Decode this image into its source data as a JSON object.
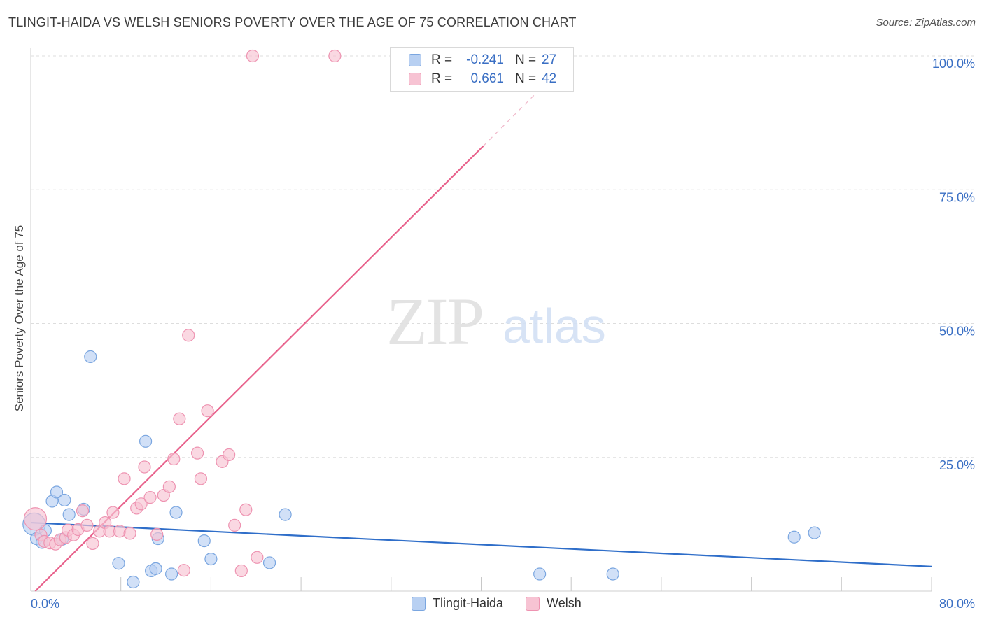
{
  "title": "TLINGIT-HAIDA VS WELSH SENIORS POVERTY OVER THE AGE OF 75 CORRELATION CHART",
  "source": "Source: ZipAtlas.com",
  "watermark": {
    "zip": "ZIP",
    "atlas": "atlas"
  },
  "legend": {
    "rows": [
      {
        "r_label": "R =",
        "r_value": "-0.241",
        "n_label": "N =",
        "n_value": "27"
      },
      {
        "r_label": "R =",
        "r_value": "0.661",
        "n_label": "N =",
        "n_value": "42"
      }
    ]
  },
  "bottom_legend": {
    "series1": "Tlingit-Haida",
    "series2": "Welsh"
  },
  "colors": {
    "blue_fill": "#b8d0f2",
    "blue_stroke": "#7aa6e0",
    "blue_line": "#2f6ec9",
    "pink_fill": "#f7c3d3",
    "pink_stroke": "#ee93b1",
    "pink_line": "#e8628c",
    "tick_label": "#3a6fc4",
    "grid": "#dddddd"
  },
  "chart_data": {
    "type": "scatter",
    "title": "TLINGIT-HAIDA VS WELSH SENIORS POVERTY OVER THE AGE OF 75 CORRELATION CHART",
    "xlabel": "",
    "ylabel": "Seniors Poverty Over the Age of 75",
    "xlim": [
      0,
      80
    ],
    "ylim": [
      0,
      100
    ],
    "x_tick_labels": [
      "0.0%",
      "80.0%"
    ],
    "y_ticks": [
      25,
      50,
      75,
      100
    ],
    "y_tick_labels": [
      "25.0%",
      "50.0%",
      "75.0%",
      "100.0%"
    ],
    "series": [
      {
        "name": "Tlingit-Haida",
        "r": -0.241,
        "n": 27,
        "points": [
          [
            0.3,
            12.5
          ],
          [
            0.5,
            9.8
          ],
          [
            1.0,
            9.1
          ],
          [
            1.3,
            11.3
          ],
          [
            1.9,
            16.8
          ],
          [
            2.3,
            18.5
          ],
          [
            2.8,
            9.7
          ],
          [
            3.0,
            17.0
          ],
          [
            3.4,
            14.3
          ],
          [
            4.7,
            15.3
          ],
          [
            5.3,
            43.8
          ],
          [
            7.8,
            5.2
          ],
          [
            9.1,
            1.7
          ],
          [
            10.2,
            28.0
          ],
          [
            10.7,
            3.8
          ],
          [
            11.1,
            4.2
          ],
          [
            11.3,
            9.8
          ],
          [
            12.5,
            3.2
          ],
          [
            12.9,
            14.7
          ],
          [
            15.4,
            9.4
          ],
          [
            16.0,
            6.0
          ],
          [
            21.2,
            5.3
          ],
          [
            22.6,
            14.3
          ],
          [
            45.2,
            3.2
          ],
          [
            51.7,
            3.2
          ],
          [
            67.8,
            10.1
          ],
          [
            69.6,
            10.9
          ]
        ],
        "trend": {
          "x0": 0,
          "y0": 12.8,
          "x1": 80,
          "y1": 4.6
        }
      },
      {
        "name": "Welsh",
        "r": 0.661,
        "n": 42,
        "points": [
          [
            0.4,
            13.5
          ],
          [
            0.9,
            10.5
          ],
          [
            1.2,
            9.3
          ],
          [
            1.7,
            9.0
          ],
          [
            2.2,
            8.8
          ],
          [
            2.6,
            9.6
          ],
          [
            3.1,
            10.0
          ],
          [
            3.3,
            11.4
          ],
          [
            3.8,
            10.5
          ],
          [
            4.2,
            11.5
          ],
          [
            4.6,
            15.0
          ],
          [
            5.0,
            12.3
          ],
          [
            5.5,
            8.9
          ],
          [
            6.1,
            11.2
          ],
          [
            6.6,
            12.8
          ],
          [
            7.0,
            11.2
          ],
          [
            7.3,
            14.7
          ],
          [
            7.9,
            11.2
          ],
          [
            8.3,
            21.0
          ],
          [
            8.8,
            10.8
          ],
          [
            9.4,
            15.5
          ],
          [
            9.8,
            16.3
          ],
          [
            10.1,
            23.2
          ],
          [
            10.6,
            17.5
          ],
          [
            11.2,
            10.6
          ],
          [
            11.8,
            17.9
          ],
          [
            12.3,
            19.5
          ],
          [
            12.7,
            24.7
          ],
          [
            13.2,
            32.2
          ],
          [
            13.6,
            3.9
          ],
          [
            14.0,
            47.8
          ],
          [
            14.8,
            25.8
          ],
          [
            15.1,
            21.0
          ],
          [
            15.7,
            33.7
          ],
          [
            17.0,
            24.2
          ],
          [
            17.6,
            25.5
          ],
          [
            18.1,
            12.3
          ],
          [
            18.7,
            3.8
          ],
          [
            19.1,
            15.2
          ],
          [
            20.1,
            6.3
          ],
          [
            19.7,
            100.0
          ],
          [
            27.0,
            100.0
          ]
        ],
        "trend": {
          "x0": 0.4,
          "y0": 0,
          "x1": 40.2,
          "y1": 83.2,
          "dash_x1": 47.0,
          "dash_y1": 97.5
        }
      }
    ]
  }
}
